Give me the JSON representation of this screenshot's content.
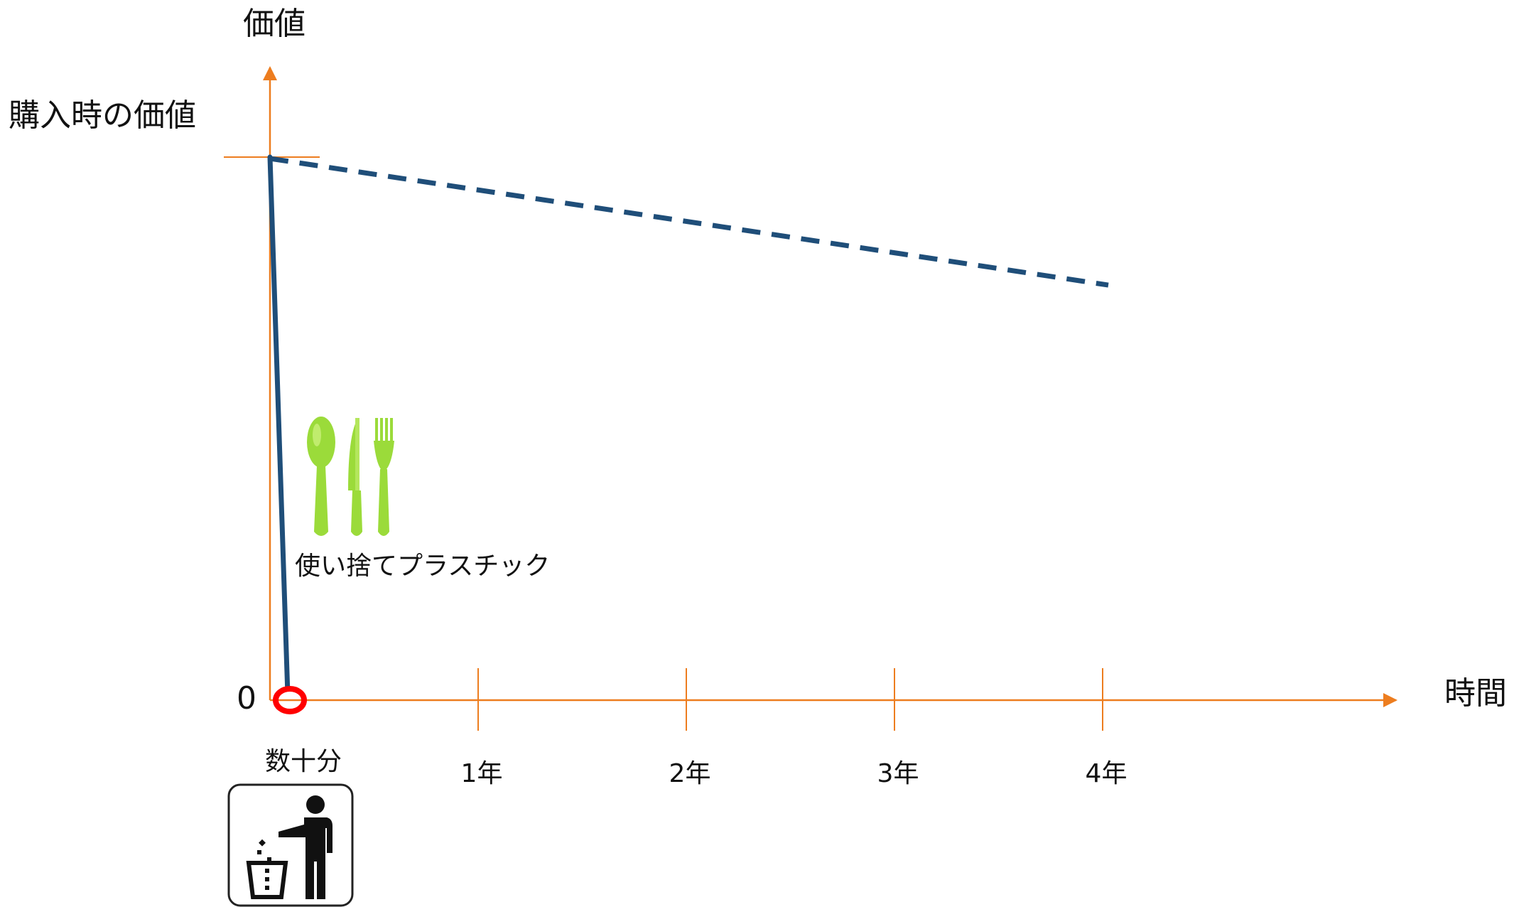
{
  "chart_data": {
    "type": "line",
    "ylabel": "価値",
    "xlabel": "時間",
    "y_tick_labels": {
      "top": "購入時の価値",
      "zero": "0"
    },
    "x_tick_labels": [
      "数十分",
      "1年",
      "2年",
      "3年",
      "4年"
    ],
    "annotation": "使い捨てプラスチック",
    "colors": {
      "axis": "#ED7D1F",
      "series": "#1F4E79",
      "marker": "#FF0000",
      "cutlery": "#9BDB3A"
    },
    "series": [
      {
        "style": "solid",
        "points": [
          {
            "x_years": 0,
            "y_pct": 100
          },
          {
            "x_years": 0.05,
            "y_pct": 0
          }
        ]
      },
      {
        "style": "dashed",
        "points": [
          {
            "x_years": 0,
            "y_pct": 100
          },
          {
            "x_years": 4,
            "y_pct": 78
          }
        ]
      }
    ],
    "icons": {
      "cutlery": [
        "spoon-icon",
        "knife-icon",
        "fork-icon"
      ],
      "trash": "trash-person-icon"
    }
  }
}
